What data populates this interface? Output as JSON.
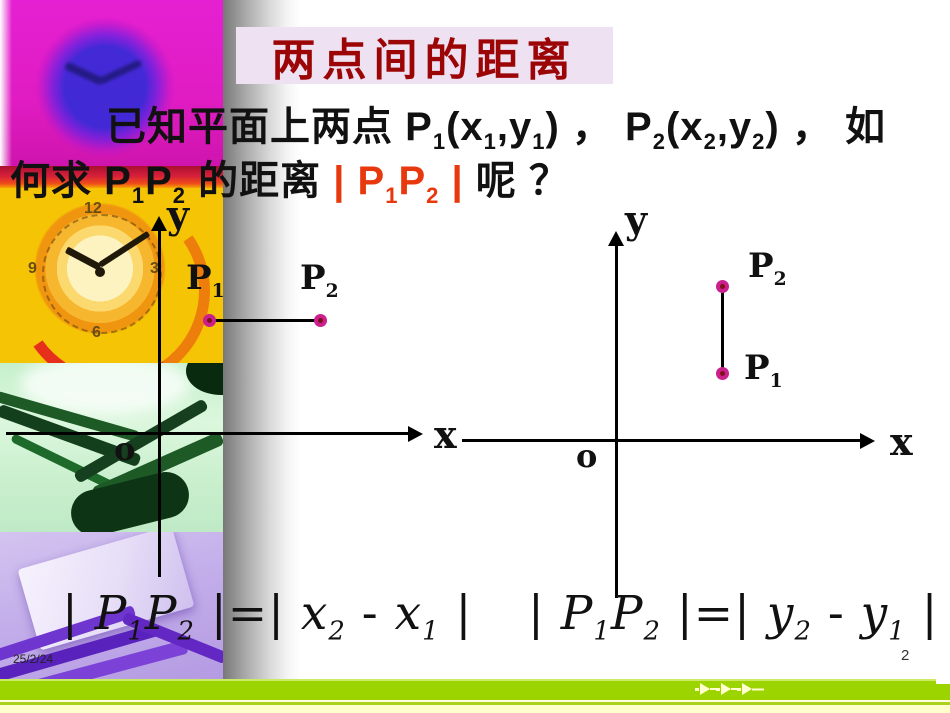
{
  "slide": {
    "title": "两点间的距离",
    "date": "25/2/24",
    "page_number": "2"
  },
  "intro": {
    "line1": [
      {
        "t": "已知平面上两点 "
      },
      {
        "t": "P"
      },
      {
        "t": "1",
        "sub": true
      },
      {
        "t": "(x"
      },
      {
        "t": "1",
        "sub": true
      },
      {
        "t": ",y"
      },
      {
        "t": "1",
        "sub": true
      },
      {
        "t": ") ， "
      },
      {
        "t": "P"
      },
      {
        "t": "2",
        "sub": true
      },
      {
        "t": "(x"
      },
      {
        "t": "2",
        "sub": true
      },
      {
        "t": ",y"
      },
      {
        "t": "2",
        "sub": true
      },
      {
        "t": ") ， 如"
      }
    ],
    "line2": [
      {
        "t": "何求 "
      },
      {
        "t": "P"
      },
      {
        "t": "1",
        "sub": true
      },
      {
        "t": "P"
      },
      {
        "t": "2",
        "sub": true
      },
      {
        "t": " 的距离 "
      },
      {
        "t": "| ",
        "red": true
      },
      {
        "t": "P",
        "red": true
      },
      {
        "t": "1",
        "sub": true,
        "red": true
      },
      {
        "t": "P",
        "red": true
      },
      {
        "t": "2",
        "sub": true,
        "red": true
      },
      {
        "t": " |",
        "red": true
      },
      {
        "t": " 呢 ？"
      }
    ]
  },
  "diagram_left": {
    "y_label": "y",
    "x_label": "x",
    "origin_label": "o",
    "p1": [
      {
        "t": "P"
      },
      {
        "t": "1",
        "sub": true
      }
    ],
    "p2": [
      {
        "t": "P"
      },
      {
        "t": "2",
        "sub": true
      }
    ]
  },
  "diagram_right": {
    "y_label": "y",
    "x_label": "x",
    "origin_label": "o",
    "p1": [
      {
        "t": "P"
      },
      {
        "t": "1",
        "sub": true
      }
    ],
    "p2": [
      {
        "t": "P"
      },
      {
        "t": "2",
        "sub": true
      }
    ]
  },
  "formula_left": [
    {
      "t": "| ",
      "up": true
    },
    {
      "t": "P"
    },
    {
      "t": "1",
      "sub": true
    },
    {
      "t": "P"
    },
    {
      "t": "2",
      "sub": true
    },
    {
      "t": " |",
      "up": true
    },
    {
      "t": "=",
      "up": true
    },
    {
      "t": "| ",
      "up": true
    },
    {
      "t": "x"
    },
    {
      "t": "2",
      "sub": true
    },
    {
      "t": " - ",
      "up": true
    },
    {
      "t": "x"
    },
    {
      "t": "1",
      "sub": true
    },
    {
      "t": " |",
      "up": true
    }
  ],
  "formula_right": [
    {
      "t": "| ",
      "up": true
    },
    {
      "t": "P"
    },
    {
      "t": "1",
      "sub": true
    },
    {
      "t": "P"
    },
    {
      "t": "2",
      "sub": true
    },
    {
      "t": " |",
      "up": true
    },
    {
      "t": "=",
      "up": true
    },
    {
      "t": "| ",
      "up": true
    },
    {
      "t": "y"
    },
    {
      "t": "2",
      "sub": true
    },
    {
      "t": " - ",
      "up": true
    },
    {
      "t": "y"
    },
    {
      "t": "1",
      "sub": true
    },
    {
      "t": " |",
      "up": true
    }
  ],
  "icons": {
    "nav_arrows": "fast-forward-arrows"
  },
  "colors": {
    "title_red": "#9b0505",
    "title_bg": "#eee1f2",
    "accent_red": "#e8380d",
    "ink": "#111111",
    "bar_green": "#9cd400",
    "pale_yellow": "#ffffcc",
    "dot_ring": "#cb1f8e",
    "dot_core": "#7c1216"
  }
}
